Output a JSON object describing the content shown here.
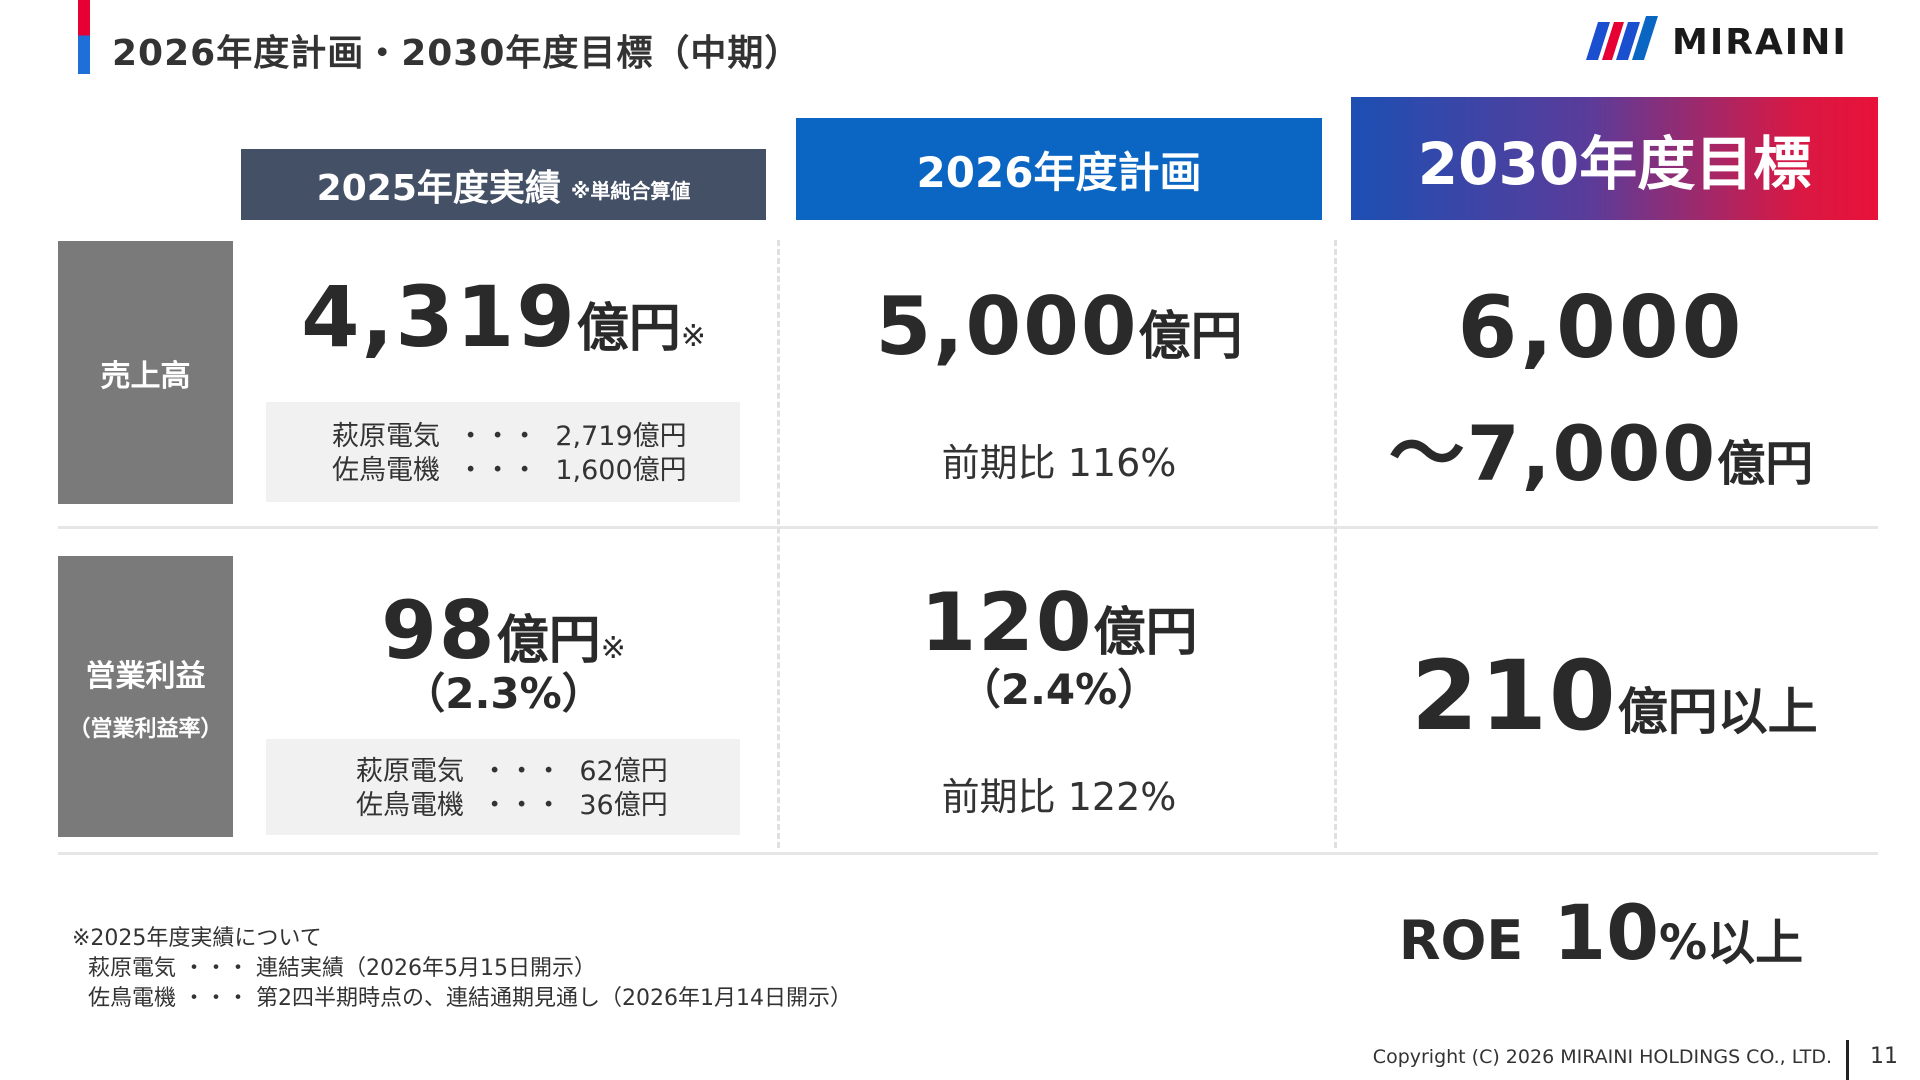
{
  "header": {
    "title": "2026年度計画・2030年度目標（中期）",
    "logo_text": "MIRAINI"
  },
  "columns": {
    "actual_2025": {
      "label": "2025年度実績",
      "note": "※単純合算値"
    },
    "plan_2026": {
      "label": "2026年度計画"
    },
    "target_2030": {
      "label": "2030年度目標"
    }
  },
  "rows": {
    "sales": {
      "label": "売上高",
      "actual_2025": {
        "value": "4,319",
        "unit": "億円",
        "mark": "※",
        "breakdown": [
          {
            "company": "萩原電気",
            "value": "2,719億円"
          },
          {
            "company": "佐鳥電機",
            "value": "1,600億円"
          }
        ]
      },
      "plan_2026": {
        "value": "5,000",
        "unit": "億円",
        "growth": "前期比 116%"
      },
      "target_2030": {
        "value_line1": "6,000",
        "value_line2": "～7,000",
        "unit": "億円"
      }
    },
    "operating_profit": {
      "label": "営業利益",
      "sublabel": "（営業利益率）",
      "actual_2025": {
        "value": "98",
        "unit": "億円",
        "mark": "※",
        "rate": "（2.3%）",
        "breakdown": [
          {
            "company": "萩原電気",
            "value": "62億円"
          },
          {
            "company": "佐鳥電機",
            "value": "36億円"
          }
        ]
      },
      "plan_2026": {
        "value": "120",
        "unit": "億円",
        "rate": "（2.4%）",
        "growth": "前期比 122%"
      },
      "target_2030": {
        "value": "210",
        "unit": "億円以上"
      }
    }
  },
  "roe": {
    "label": "ROE",
    "value": "10",
    "unit": "%以上"
  },
  "footnote": {
    "heading": "※2025年度実績について",
    "lines": [
      "萩原電気 ・・・ 連結実績（2026年5月15日開示）",
      "佐鳥電機 ・・・ 第2四半期時点の、連結通期見通し（2026年1月14日開示）"
    ]
  },
  "footer": {
    "copyright": "Copyright (C) 2026 MIRAINI HOLDINGS CO., LTD.",
    "page_number": "11"
  },
  "colors": {
    "header_2025": "#445066",
    "header_2026": "#0a66c2",
    "header_2030_start": "#1d4fb3",
    "header_2030_end": "#e8123a",
    "row_label_bg": "#7a7a7a",
    "accent_red": "#e60033",
    "accent_blue": "#1f6fd8"
  }
}
